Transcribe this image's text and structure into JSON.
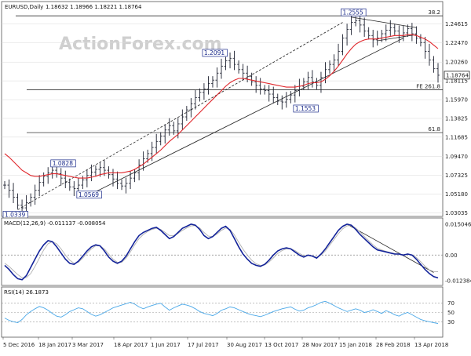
{
  "chart_data": [
    {
      "panel": "price",
      "type": "ohlc",
      "title": "EURUSD,Daily",
      "ohlc": "1.18632 1.18966 1.18221 1.18764",
      "watermark": "ActionForex.com",
      "last_price": "1.18764",
      "ylim": [
        1.028,
        1.27
      ],
      "yticks": [
        "1.24615",
        "1.22470",
        "1.20260",
        "1.18115",
        "1.15970",
        "1.13825",
        "1.11685",
        "1.09470",
        "1.07325",
        "1.05180",
        "1.03035"
      ],
      "xticks": [
        "5 Dec 2016",
        "18 Jan 2017",
        "3 Mar 2017",
        "18 Apr 2017",
        "1 Jun 2017",
        "17 Jul 2017",
        "30 Aug 2017",
        "13 Oct 2017",
        "28 Nov 2017",
        "15 Jan 2018",
        "28 Feb 2018",
        "13 Apr 2018"
      ],
      "key_levels": [
        {
          "label": "38.2",
          "value": 1.2555
        },
        {
          "label": "FE 261.8",
          "value": 1.171
        },
        {
          "label": "61.8",
          "value": 1.122
        }
      ],
      "annotations": [
        {
          "label": "1.0339",
          "value": 1.0339
        },
        {
          "label": "1.0828",
          "value": 1.0828
        },
        {
          "label": "1.0569",
          "value": 1.0569
        },
        {
          "label": "1.2091",
          "value": 1.2091
        },
        {
          "label": "1.1553",
          "value": 1.1553
        },
        {
          "label": "1.2555",
          "value": 1.2555
        }
      ],
      "series": [
        {
          "kind": "price",
          "values": [
            1.062,
            1.056,
            1.048,
            1.039,
            1.036,
            1.042,
            1.048,
            1.056,
            1.065,
            1.072,
            1.076,
            1.079,
            1.075,
            1.07,
            1.065,
            1.06,
            1.058,
            1.062,
            1.068,
            1.073,
            1.077,
            1.08,
            1.082,
            1.079,
            1.074,
            1.069,
            1.064,
            1.061,
            1.064,
            1.07,
            1.076,
            1.085,
            1.092,
            1.098,
            1.105,
            1.112,
            1.118,
            1.125,
            1.13,
            1.124,
            1.132,
            1.14,
            1.148,
            1.155,
            1.162,
            1.168,
            1.172,
            1.178,
            1.182,
            1.19,
            1.198,
            1.204,
            1.207,
            1.2,
            1.194,
            1.19,
            1.186,
            1.18,
            1.176,
            1.172,
            1.17,
            1.166,
            1.162,
            1.158,
            1.157,
            1.16,
            1.165,
            1.17,
            1.175,
            1.18,
            1.185,
            1.18,
            1.176,
            1.185,
            1.194,
            1.2,
            1.205,
            1.215,
            1.23,
            1.24,
            1.248,
            1.25,
            1.245,
            1.238,
            1.233,
            1.228,
            1.23,
            1.235,
            1.239,
            1.242,
            1.238,
            1.233,
            1.236,
            1.241,
            1.235,
            1.23,
            1.225,
            1.215,
            1.205,
            1.195,
            1.1876
          ]
        },
        {
          "kind": "sma",
          "values": [
            1.098,
            1.094,
            1.089,
            1.084,
            1.079,
            1.076,
            1.073,
            1.072,
            1.072,
            1.073,
            1.074,
            1.075,
            1.075,
            1.074,
            1.073,
            1.072,
            1.071,
            1.07,
            1.07,
            1.07,
            1.071,
            1.072,
            1.074,
            1.075,
            1.076,
            1.076,
            1.076,
            1.076,
            1.077,
            1.078,
            1.08,
            1.083,
            1.086,
            1.09,
            1.094,
            1.098,
            1.102,
            1.107,
            1.112,
            1.116,
            1.12,
            1.125,
            1.13,
            1.135,
            1.14,
            1.145,
            1.15,
            1.155,
            1.16,
            1.165,
            1.17,
            1.175,
            1.179,
            1.182,
            1.184,
            1.184,
            1.183,
            1.182,
            1.181,
            1.18,
            1.179,
            1.178,
            1.177,
            1.176,
            1.175,
            1.174,
            1.174,
            1.174,
            1.175,
            1.176,
            1.178,
            1.179,
            1.179,
            1.18,
            1.183,
            1.187,
            1.192,
            1.198,
            1.205,
            1.212,
            1.218,
            1.223,
            1.226,
            1.228,
            1.229,
            1.229,
            1.229,
            1.23,
            1.231,
            1.232,
            1.233,
            1.233,
            1.233,
            1.234,
            1.234,
            1.233,
            1.231,
            1.229,
            1.226,
            1.222,
            1.218
          ]
        }
      ]
    },
    {
      "panel": "macd",
      "type": "line",
      "title": "MACD(12,26,9) -0.011137 -0.008054",
      "ylim": [
        -0.014,
        0.0165
      ],
      "yticks": [
        "0.015046",
        "0.00",
        "-0.012384"
      ],
      "series": [
        {
          "kind": "macd",
          "values": [
            -0.005,
            -0.007,
            -0.0095,
            -0.0115,
            -0.012,
            -0.01,
            -0.006,
            -0.002,
            0.002,
            0.005,
            0.007,
            0.0065,
            0.004,
            0.001,
            -0.002,
            -0.004,
            -0.0045,
            -0.003,
            -0.0005,
            0.002,
            0.004,
            0.005,
            0.0045,
            0.002,
            -0.001,
            -0.003,
            -0.004,
            -0.003,
            -0.0005,
            0.003,
            0.0065,
            0.0095,
            0.011,
            0.012,
            0.013,
            0.0135,
            0.012,
            0.01,
            0.008,
            0.009,
            0.011,
            0.013,
            0.014,
            0.015,
            0.0145,
            0.0125,
            0.0095,
            0.008,
            0.009,
            0.011,
            0.013,
            0.014,
            0.012,
            0.008,
            0.004,
            0.0005,
            -0.002,
            -0.004,
            -0.005,
            -0.0055,
            -0.0045,
            -0.0025,
            0.0,
            0.002,
            0.003,
            0.0035,
            0.003,
            0.0015,
            0.0,
            -0.001,
            0.0,
            -0.0005,
            -0.0015,
            0.0005,
            0.003,
            0.006,
            0.009,
            0.012,
            0.014,
            0.015,
            0.0145,
            0.0125,
            0.01,
            0.008,
            0.006,
            0.004,
            0.0025,
            0.002,
            0.0015,
            0.001,
            0.0005,
            0.0005,
            0.0,
            0.0005,
            0.0,
            -0.002,
            -0.0045,
            -0.007,
            -0.009,
            -0.0105,
            -0.0111
          ]
        },
        {
          "kind": "signal",
          "values": [
            -0.004,
            -0.0055,
            -0.0075,
            -0.0095,
            -0.011,
            -0.011,
            -0.009,
            -0.0055,
            -0.0015,
            0.0025,
            0.0055,
            0.0065,
            0.0055,
            0.003,
            0.0,
            -0.0025,
            -0.004,
            -0.0035,
            -0.0015,
            0.001,
            0.003,
            0.0045,
            0.0045,
            0.003,
            0.0005,
            -0.002,
            -0.0035,
            -0.0035,
            -0.0015,
            0.0015,
            0.005,
            0.008,
            0.01,
            0.0115,
            0.0125,
            0.013,
            0.0125,
            0.011,
            0.0095,
            0.0095,
            0.0105,
            0.012,
            0.0132,
            0.0142,
            0.0143,
            0.0132,
            0.011,
            0.0092,
            0.009,
            0.0102,
            0.012,
            0.0132,
            0.0125,
            0.0098,
            0.0062,
            0.0028,
            0.0,
            -0.0025,
            -0.0042,
            -0.005,
            -0.0048,
            -0.0034,
            -0.0014,
            0.0008,
            0.0022,
            0.003,
            0.0031,
            0.0022,
            0.0008,
            -0.0004,
            -0.0002,
            -0.0004,
            -0.001,
            0.0,
            0.002,
            0.0048,
            0.0076,
            0.0104,
            0.0128,
            0.0142,
            0.0144,
            0.0132,
            0.0112,
            0.009,
            0.007,
            0.005,
            0.0033,
            0.0025,
            0.0018,
            0.0012,
            0.0008,
            0.0006,
            0.0002,
            0.0004,
            0.0002,
            -0.0012,
            -0.0032,
            -0.0054,
            -0.0072,
            -0.008,
            -0.0081
          ]
        }
      ]
    },
    {
      "panel": "rsi",
      "type": "line",
      "title": "RSI(14) 26.1873",
      "ylim": [
        0,
        100
      ],
      "yticks": [
        "70",
        "50",
        "30"
      ],
      "series": [
        {
          "kind": "rsi",
          "values": [
            38,
            33,
            30,
            28,
            35,
            45,
            52,
            58,
            63,
            60,
            55,
            48,
            42,
            40,
            45,
            52,
            56,
            60,
            58,
            52,
            46,
            42,
            45,
            50,
            55,
            60,
            63,
            66,
            69,
            72,
            68,
            62,
            58,
            62,
            65,
            68,
            70,
            62,
            55,
            60,
            64,
            68,
            66,
            63,
            58,
            52,
            48,
            46,
            43,
            48,
            55,
            58,
            62,
            60,
            56,
            52,
            48,
            45,
            43,
            41,
            44,
            48,
            52,
            55,
            58,
            60,
            62,
            57,
            53,
            55,
            60,
            63,
            67,
            72,
            74,
            70,
            65,
            60,
            56,
            52,
            55,
            58,
            55,
            50,
            52,
            56,
            52,
            48,
            54,
            50,
            45,
            42,
            47,
            50,
            45,
            40,
            35,
            32,
            30,
            28,
            26.2
          ]
        }
      ]
    }
  ]
}
